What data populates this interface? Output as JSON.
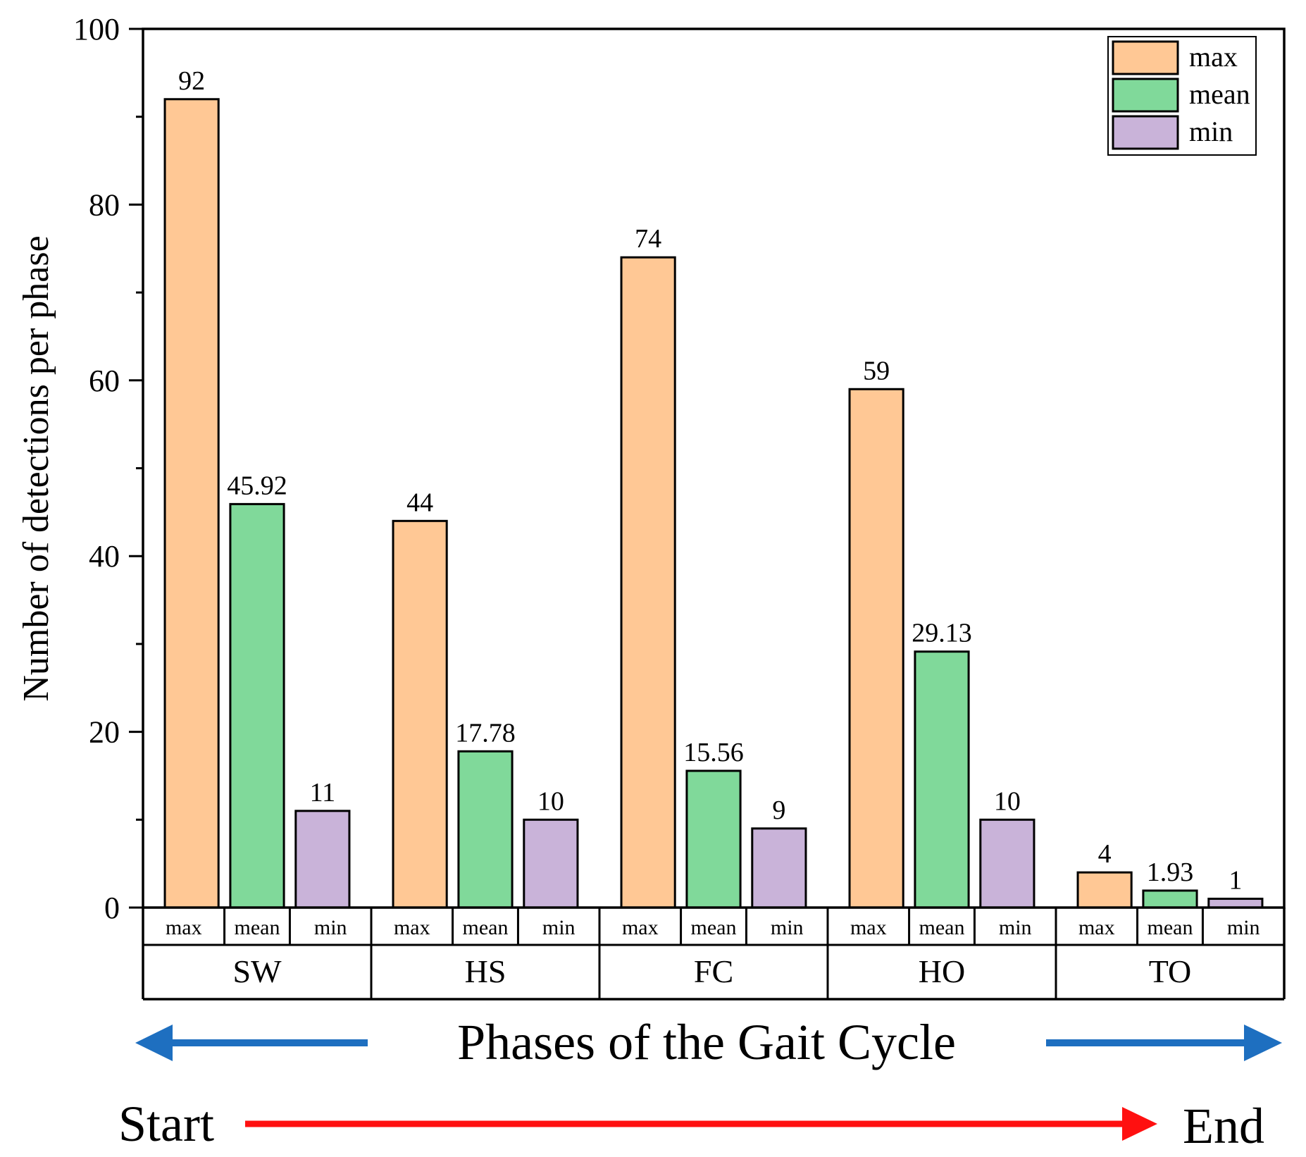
{
  "chart_data": {
    "type": "bar",
    "ylabel": "Number of detections per phase",
    "xlabel": "Phases of the Gait Cycle",
    "ylim": [
      0,
      100
    ],
    "yticks": [
      0,
      20,
      40,
      60,
      80,
      100
    ],
    "grid": false,
    "legend_position": "top-right",
    "categories": [
      "SW",
      "HS",
      "FC",
      "HO",
      "TO"
    ],
    "series": [
      {
        "name": "max",
        "color": "#FFC895",
        "values": [
          92,
          44,
          74,
          59,
          4
        ],
        "labels": [
          "92",
          "44",
          "74",
          "59",
          "4"
        ]
      },
      {
        "name": "mean",
        "color": "#80D99A",
        "values": [
          45.92,
          17.78,
          15.56,
          29.13,
          1.93
        ],
        "labels": [
          "45.92",
          "17.78",
          "15.56",
          "29.13",
          "1.93"
        ]
      },
      {
        "name": "min",
        "color": "#C9B3D9",
        "values": [
          11,
          10,
          9,
          10,
          1
        ],
        "labels": [
          "11",
          "10",
          "9",
          "10",
          "1"
        ]
      }
    ],
    "sub_labels": [
      "max",
      "mean",
      "min"
    ],
    "start_label": "Start",
    "end_label": "End",
    "axis_title_color": "#1E6FC0",
    "arrow_blue": "#1E6FC0",
    "arrow_red": "#FF1010"
  }
}
